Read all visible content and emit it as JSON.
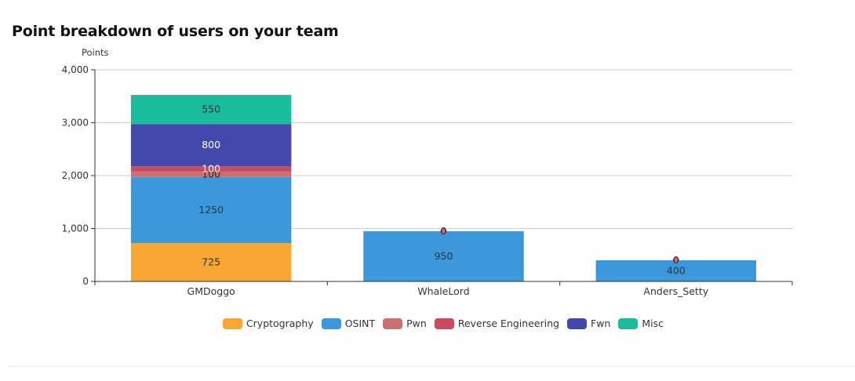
{
  "chart_data": {
    "type": "bar",
    "stacked": true,
    "title": "Point breakdown of users on your team",
    "ylabel": "Points",
    "xlabel": "",
    "ylim": [
      0,
      4000
    ],
    "yticks": [
      "0",
      "1,000",
      "2,000",
      "3,000",
      "4,000"
    ],
    "ytick_values": [
      0,
      1000,
      2000,
      3000,
      4000
    ],
    "grid": true,
    "legend_position": "bottom",
    "categories": [
      "GMDoggo",
      "WhaleLord",
      "Anders_Setty"
    ],
    "series": [
      {
        "name": "Cryptography",
        "color": "#f7a533",
        "values": [
          725,
          0,
          0
        ],
        "labels": [
          "725",
          "",
          ""
        ]
      },
      {
        "name": "OSINT",
        "color": "#3b98db",
        "values": [
          1250,
          950,
          400
        ],
        "labels": [
          "1250",
          "950",
          "400"
        ]
      },
      {
        "name": "Pwn",
        "color": "#c97070",
        "values": [
          100,
          0,
          0
        ],
        "labels": [
          "100",
          "0",
          "0"
        ]
      },
      {
        "name": "Reverse Engineering",
        "color": "#c94b5e",
        "values": [
          100,
          0,
          0
        ],
        "labels": [
          "100",
          "",
          ""
        ]
      },
      {
        "name": "Fwn",
        "color": "#4349ac",
        "values": [
          800,
          0,
          0
        ],
        "labels": [
          "800",
          "",
          ""
        ]
      },
      {
        "name": "Misc",
        "color": "#1bbc9c",
        "values": [
          550,
          0,
          0
        ],
        "labels": [
          "550",
          "",
          ""
        ]
      }
    ]
  }
}
